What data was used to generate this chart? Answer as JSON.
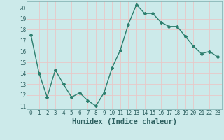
{
  "x": [
    0,
    1,
    2,
    3,
    4,
    5,
    6,
    7,
    8,
    9,
    10,
    11,
    12,
    13,
    14,
    15,
    16,
    17,
    18,
    19,
    20,
    21,
    22,
    23
  ],
  "y": [
    17.5,
    14.0,
    11.8,
    14.3,
    13.0,
    11.8,
    12.2,
    11.5,
    11.0,
    12.2,
    14.5,
    16.1,
    18.5,
    20.3,
    19.5,
    19.5,
    18.7,
    18.3,
    18.3,
    17.4,
    16.5,
    15.8,
    16.0,
    15.5
  ],
  "xlabel": "Humidex (Indice chaleur)",
  "ylim": [
    10.7,
    20.6
  ],
  "xlim": [
    -0.5,
    23.5
  ],
  "yticks": [
    11,
    12,
    13,
    14,
    15,
    16,
    17,
    18,
    19,
    20
  ],
  "xticks": [
    0,
    1,
    2,
    3,
    4,
    5,
    6,
    7,
    8,
    9,
    10,
    11,
    12,
    13,
    14,
    15,
    16,
    17,
    18,
    19,
    20,
    21,
    22,
    23
  ],
  "line_color": "#2d7f6e",
  "marker": "D",
  "marker_size": 2.0,
  "bg_color": "#cceaea",
  "grid_color": "#e8c8c8",
  "line_width": 1.0,
  "tick_fontsize": 5.5,
  "xlabel_fontsize": 7.5
}
